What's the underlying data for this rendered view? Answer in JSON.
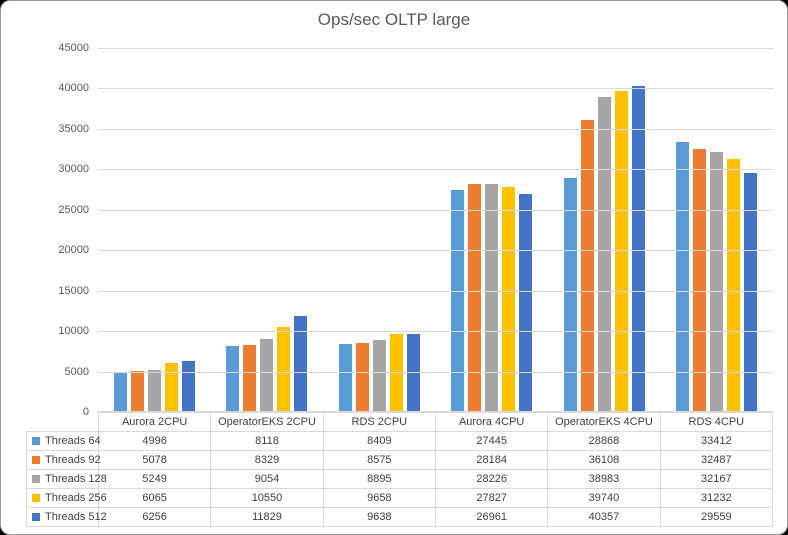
{
  "window": {
    "background_color": "#ffffff",
    "frame_border_color": "#9b9b9b"
  },
  "chart_data": {
    "type": "bar",
    "title": "Ops/sec OLTP large",
    "categories": [
      "Aurora 2CPU",
      "OperatorEKS 2CPU",
      "RDS 2CPU",
      "Aurora 4CPU",
      "OperatorEKS 4CPU",
      "RDS 4CPU"
    ],
    "series": [
      {
        "name": "Threads 64",
        "color": "#5B9BD5",
        "values": [
          4996,
          8118,
          8409,
          27445,
          28868,
          33412
        ]
      },
      {
        "name": "Threads 92",
        "color": "#ED7D31",
        "values": [
          5078,
          8329,
          8575,
          28184,
          36108,
          32487
        ]
      },
      {
        "name": "Threads 128",
        "color": "#A5A5A5",
        "values": [
          5249,
          9054,
          8895,
          28226,
          38983,
          32167
        ]
      },
      {
        "name": "Threads 256",
        "color": "#FFC000",
        "values": [
          6065,
          10550,
          9658,
          27827,
          39740,
          31232
        ]
      },
      {
        "name": "Threads 512",
        "color": "#4472C4",
        "values": [
          6256,
          11829,
          9638,
          26961,
          40357,
          29559
        ]
      }
    ],
    "xlabel": "",
    "ylabel": "",
    "ylim": [
      0,
      45000
    ],
    "yticks": [
      0,
      5000,
      10000,
      15000,
      20000,
      25000,
      30000,
      35000,
      40000,
      45000
    ],
    "grid": true,
    "gridline_color": "#d9d9d9",
    "axis_text_color": "#595959",
    "title_color": "#595959",
    "legend_position": "data-table-left",
    "table_border_color": "#d9d9d9",
    "table_text_color": "#404040"
  }
}
